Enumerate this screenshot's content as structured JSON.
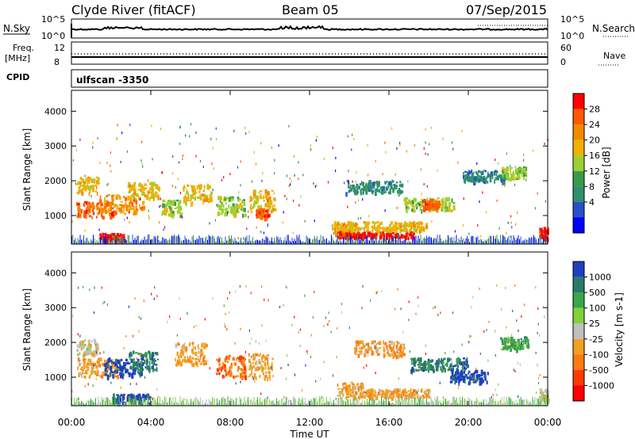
{
  "header": {
    "station": "Clyde River (fitACF)",
    "beam": "Beam 05",
    "date": "07/Sep/2015"
  },
  "top_panels": {
    "noise_left_label": "N.Sky",
    "noise_right_label": "N.Search",
    "noise_ticks": [
      "10^5",
      "10^0"
    ],
    "freq_label_line1": "Freq.",
    "freq_label_line2": "[MHz]",
    "freq_ticks": [
      "12",
      "8"
    ],
    "nave_label": "Nave",
    "nave_ticks": [
      "60",
      "0"
    ],
    "cpid_label": "CPID",
    "cpid_value": "ulfscan -3350"
  },
  "x_axis": {
    "label": "Time UT",
    "ticks": [
      "00:00",
      "04:00",
      "08:00",
      "12:00",
      "16:00",
      "20:00",
      "00:00"
    ]
  },
  "power_panel": {
    "ylabel": "Slant Range [km]",
    "yticks": [
      "4000",
      "3000",
      "2000",
      "1000"
    ],
    "colorbar_title": "Power [dB]",
    "colorbar_ticks": [
      "28",
      "24",
      "20",
      "16",
      "12",
      "8",
      "4"
    ],
    "colors": [
      "#ff0000",
      "#ff5a00",
      "#f28a00",
      "#f3b000",
      "#9bd132",
      "#3a9a4a",
      "#2f8f6f",
      "#2850c8",
      "#0000ff"
    ]
  },
  "velocity_panel": {
    "ylabel": "Slant Range [km]",
    "yticks": [
      "4000",
      "3000",
      "2000",
      "1000"
    ],
    "colorbar_title": "Velocity [m s-1]",
    "colorbar_ticks": [
      "1000",
      "500",
      "100",
      "25",
      "-25",
      "-100",
      "-500",
      "-1000"
    ],
    "colors": [
      "#1f3fbf",
      "#2a7a6a",
      "#3aa64a",
      "#7fd23a",
      "#bfbfbf",
      "#f2a020",
      "#ff7a10",
      "#ff3a00",
      "#ff0000"
    ]
  },
  "chart_data": {
    "type": "heatmap",
    "x_range_hours": [
      0,
      24
    ],
    "y_range_km": [
      180,
      4600
    ],
    "power_blobs": [
      {
        "t": 0.8,
        "dt": 0.7,
        "r": 1900,
        "dr": 250,
        "level": 16
      },
      {
        "t": 1.2,
        "dt": 1.2,
        "r": 1200,
        "dr": 250,
        "level": 24
      },
      {
        "t": 2.5,
        "dt": 1.4,
        "r": 1350,
        "dr": 300,
        "level": 20
      },
      {
        "t": 3.6,
        "dt": 1.0,
        "r": 1750,
        "dr": 250,
        "level": 16
      },
      {
        "t": 2.0,
        "dt": 0.8,
        "r": 400,
        "dr": 120,
        "level": 28
      },
      {
        "t": 5.0,
        "dt": 0.6,
        "r": 1250,
        "dr": 250,
        "level": 12
      },
      {
        "t": 6.3,
        "dt": 0.9,
        "r": 1650,
        "dr": 300,
        "level": 16
      },
      {
        "t": 8.0,
        "dt": 0.9,
        "r": 1300,
        "dr": 300,
        "level": 12
      },
      {
        "t": 9.6,
        "dt": 0.8,
        "r": 1450,
        "dr": 350,
        "level": 16
      },
      {
        "t": 9.6,
        "dt": 0.4,
        "r": 1100,
        "dr": 150,
        "level": 24
      },
      {
        "t": 13.7,
        "dt": 0.6,
        "r": 600,
        "dr": 200,
        "level": 20
      },
      {
        "t": 15.3,
        "dt": 2.4,
        "r": 470,
        "dr": 90,
        "level": 28
      },
      {
        "t": 15.5,
        "dt": 3.0,
        "r": 720,
        "dr": 140,
        "level": 16
      },
      {
        "t": 15.2,
        "dt": 1.8,
        "r": 1850,
        "dr": 200,
        "level": 8
      },
      {
        "t": 18.0,
        "dt": 1.6,
        "r": 1350,
        "dr": 200,
        "level": 12
      },
      {
        "t": 18.1,
        "dt": 0.5,
        "r": 1350,
        "dr": 150,
        "level": 24
      },
      {
        "t": 20.8,
        "dt": 1.4,
        "r": 2150,
        "dr": 180,
        "level": 8
      },
      {
        "t": 22.3,
        "dt": 0.8,
        "r": 2250,
        "dr": 200,
        "level": 12
      },
      {
        "t": 23.8,
        "dt": 0.3,
        "r": 500,
        "dr": 200,
        "level": 28
      }
    ],
    "velocity_blobs": [
      {
        "t": 0.8,
        "dt": 0.7,
        "r": 1900,
        "dr": 250,
        "level": 0
      },
      {
        "t": 1.3,
        "dt": 1.3,
        "r": 1300,
        "dr": 300,
        "level": -100
      },
      {
        "t": 2.6,
        "dt": 1.2,
        "r": 1300,
        "dr": 300,
        "level": 500
      },
      {
        "t": 3.6,
        "dt": 0.9,
        "r": 1500,
        "dr": 300,
        "level": 100
      },
      {
        "t": 3.0,
        "dt": 1.2,
        "r": 400,
        "dr": 150,
        "level": 500
      },
      {
        "t": 6.0,
        "dt": 1.0,
        "r": 1700,
        "dr": 350,
        "level": -100
      },
      {
        "t": 8.0,
        "dt": 0.9,
        "r": 1350,
        "dr": 350,
        "level": -500
      },
      {
        "t": 9.5,
        "dt": 0.8,
        "r": 1350,
        "dr": 400,
        "level": -100
      },
      {
        "t": 14.0,
        "dt": 0.8,
        "r": 650,
        "dr": 250,
        "level": -100
      },
      {
        "t": 16.3,
        "dt": 2.2,
        "r": 550,
        "dr": 150,
        "level": -25
      },
      {
        "t": 15.5,
        "dt": 1.6,
        "r": 1850,
        "dr": 250,
        "level": -100
      },
      {
        "t": 18.5,
        "dt": 1.8,
        "r": 1400,
        "dr": 200,
        "level": 100
      },
      {
        "t": 20.0,
        "dt": 1.2,
        "r": 1050,
        "dr": 200,
        "level": 500
      },
      {
        "t": 22.3,
        "dt": 0.9,
        "r": 2000,
        "dr": 200,
        "level": 25
      },
      {
        "t": 23.8,
        "dt": 0.3,
        "r": 500,
        "dr": 200,
        "level": 0
      }
    ]
  }
}
